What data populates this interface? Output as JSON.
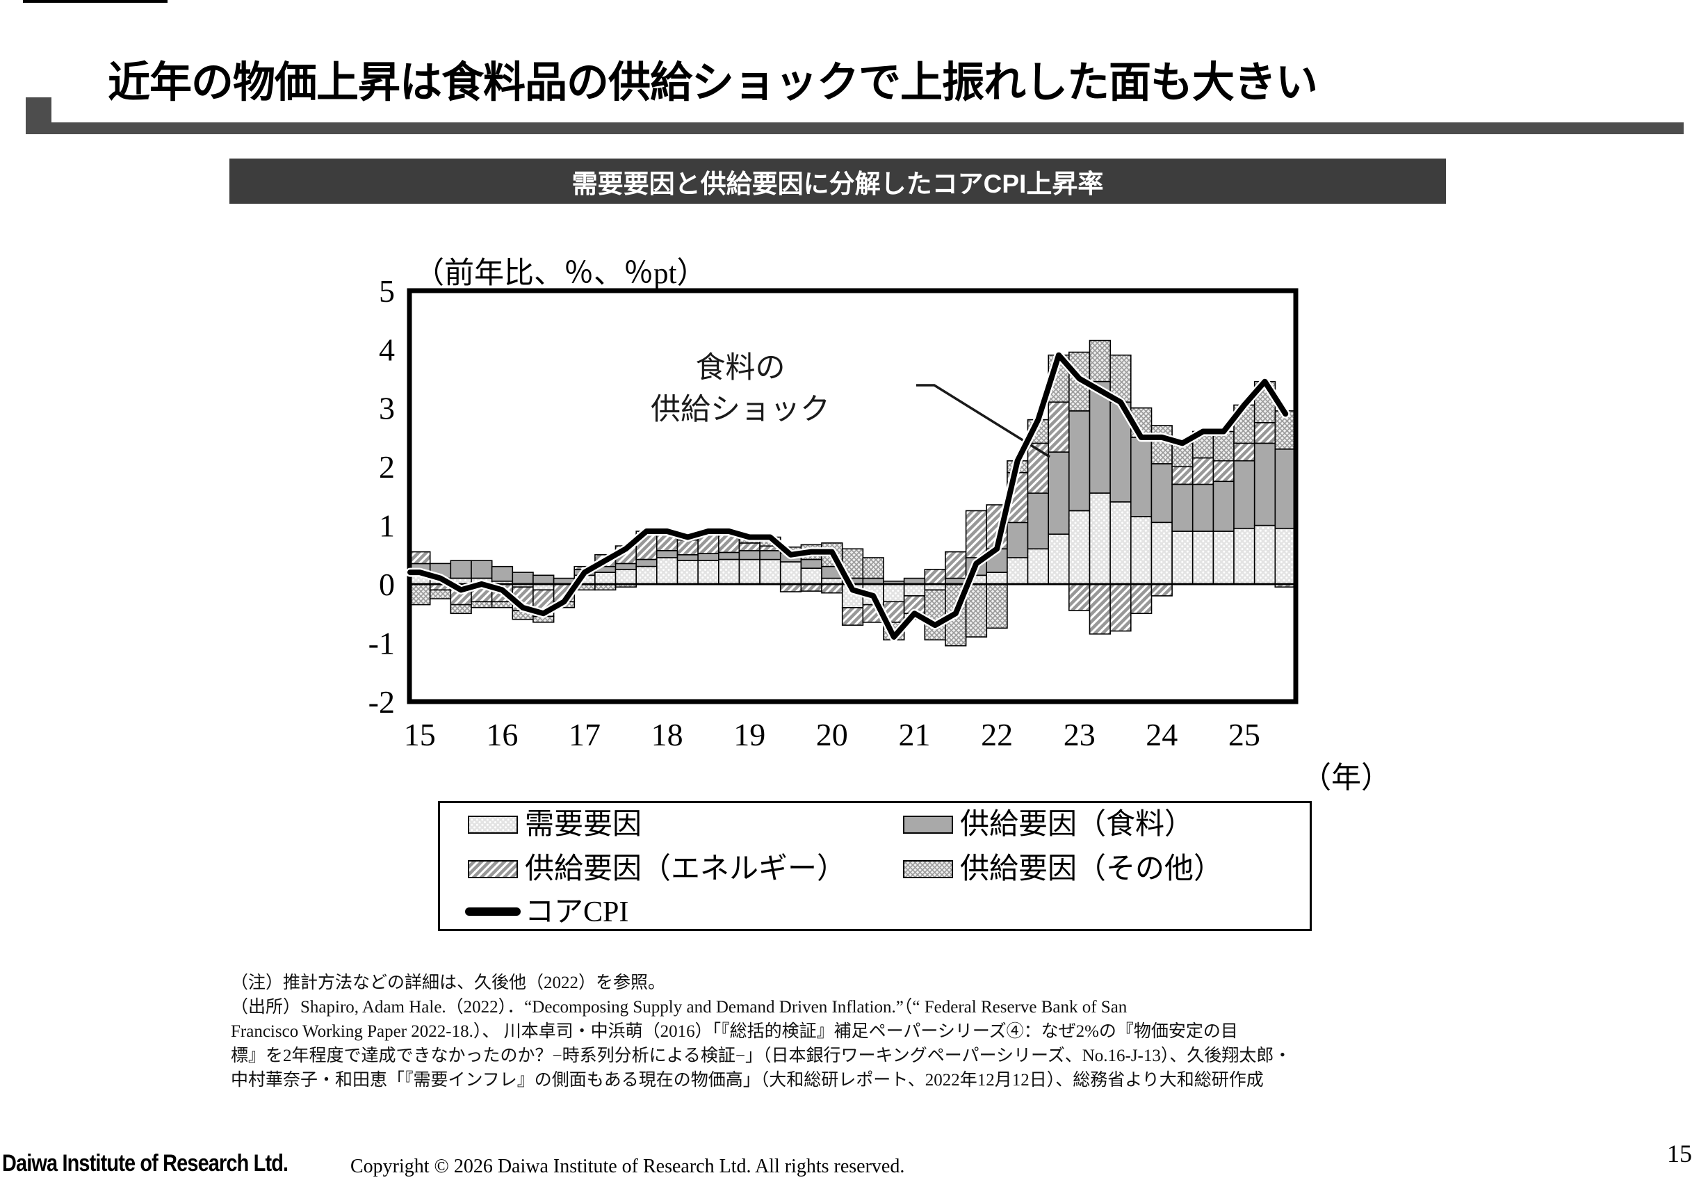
{
  "page": {
    "slide_title": "近年の物価上昇は食料品の供給ショックで上振れした面も大きい",
    "page_number": "15",
    "footer_logo": "Daiwa Institute of Research Ltd.",
    "footer_copyright": "Copyright © 2026 Daiwa Institute of Research Ltd. All rights reserved."
  },
  "chart_header": {
    "title": "需要要因と供給要因に分解したコアCPI上昇率"
  },
  "notes": {
    "lines": [
      "（注）推計方法などの詳細は、久後他（2022）を参照。",
      "（出所）Shapiro, Adam Hale.（2022）．“Decomposing Supply and Demand Driven Inflation.”（“ Federal Reserve Bank of San",
      "Francisco Working Paper 2022-18.）、 川本卓司・中浜萌（2016）「『総括的検証』補足ペーパーシリーズ④：なぜ2%の『物価安定の目",
      "標』を2年程度で達成できなかったのか？−時系列分析による検証−」（日本銀行ワーキングペーパーシリーズ、No.16-J-13）、久後翔太郎・",
      "中村華奈子・和田恵「『需要インフレ』の側面もある現在の物価高」（大和総研レポート、2022年12月12日）、総務省より大和総研作成"
    ]
  },
  "colors": {
    "header_bar": "#3d3d3d",
    "rule_gray": "#4d4d4d",
    "food_gray": "#a9a9a9",
    "pattern_gray": "#9a9a9a"
  },
  "chart_data": {
    "type": "bar",
    "subtype": "stacked-quarterly-bars-with-line",
    "title": "需要要因と供給要因に分解したコアCPI上昇率",
    "y_axis_label": "（前年比、％、％pt）",
    "x_axis_label": "（年）",
    "ylim": [
      -2,
      5
    ],
    "y_ticks": [
      5,
      4,
      3,
      2,
      1,
      0,
      -1,
      -2
    ],
    "grid": "off",
    "legend_position": "below-axis-boxed",
    "x_year_labels": [
      "15",
      "16",
      "17",
      "18",
      "19",
      "20",
      "21",
      "22",
      "23",
      "24",
      "25"
    ],
    "quarters": [
      "2015Q1",
      "2015Q2",
      "2015Q3",
      "2015Q4",
      "2016Q1",
      "2016Q2",
      "2016Q3",
      "2016Q4",
      "2017Q1",
      "2017Q2",
      "2017Q3",
      "2017Q4",
      "2018Q1",
      "2018Q2",
      "2018Q3",
      "2018Q4",
      "2019Q1",
      "2019Q2",
      "2019Q3",
      "2019Q4",
      "2020Q1",
      "2020Q2",
      "2020Q3",
      "2020Q4",
      "2021Q1",
      "2021Q2",
      "2021Q3",
      "2021Q4",
      "2022Q1",
      "2022Q2",
      "2022Q3",
      "2022Q4",
      "2023Q1",
      "2023Q2",
      "2023Q3",
      "2023Q4",
      "2024Q1",
      "2024Q2",
      "2024Q3",
      "2024Q4",
      "2025Q1",
      "2025Q2",
      "2025Q3"
    ],
    "series": [
      {
        "name": "需要要因",
        "pattern": "dots",
        "values": [
          0.15,
          0.1,
          0.1,
          0.1,
          0.05,
          -0.05,
          -0.1,
          0.0,
          0.15,
          0.2,
          0.25,
          0.3,
          0.45,
          0.4,
          0.4,
          0.42,
          0.42,
          0.42,
          0.38,
          0.27,
          0.1,
          -0.4,
          -0.35,
          -0.3,
          -0.2,
          -0.1,
          0.0,
          0.15,
          0.2,
          0.45,
          0.6,
          0.85,
          1.25,
          1.55,
          1.4,
          1.15,
          1.05,
          0.9,
          0.9,
          0.9,
          0.95,
          1.0,
          0.95
        ]
      },
      {
        "name": "供給要因（食料）",
        "pattern": "solid-gray",
        "values": [
          0.2,
          0.25,
          0.3,
          0.3,
          0.25,
          0.2,
          0.15,
          0.1,
          0.1,
          0.1,
          0.1,
          0.12,
          0.12,
          0.1,
          0.12,
          0.12,
          0.15,
          0.15,
          0.15,
          0.15,
          0.2,
          0.1,
          0.1,
          0.05,
          0.1,
          0.0,
          0.1,
          0.3,
          0.4,
          0.6,
          0.95,
          1.4,
          1.7,
          1.9,
          1.7,
          1.35,
          1.0,
          0.8,
          0.8,
          0.85,
          1.15,
          1.4,
          1.35
        ]
      },
      {
        "name": "供給要因（エネルギー）",
        "pattern": "diagonal-hatch",
        "values": [
          0.2,
          -0.1,
          -0.35,
          -0.3,
          -0.3,
          -0.4,
          -0.45,
          -0.3,
          0.05,
          0.2,
          0.3,
          0.43,
          0.28,
          0.25,
          0.33,
          0.31,
          0.13,
          0.08,
          -0.13,
          -0.12,
          -0.15,
          -0.3,
          -0.3,
          -0.35,
          -0.3,
          0.25,
          0.45,
          0.8,
          0.75,
          0.85,
          0.85,
          0.85,
          -0.45,
          -0.85,
          -0.8,
          -0.5,
          -0.2,
          0.3,
          0.45,
          0.35,
          0.3,
          0.35,
          -0.05
        ]
      },
      {
        "name": "供給要因（その他）",
        "pattern": "cross-hatch",
        "values": [
          -0.35,
          -0.15,
          -0.15,
          -0.1,
          -0.1,
          -0.15,
          -0.1,
          -0.1,
          -0.1,
          -0.1,
          -0.05,
          0.05,
          0.05,
          0.05,
          0.05,
          0.05,
          0.1,
          0.15,
          0.1,
          0.25,
          0.4,
          0.5,
          0.35,
          -0.3,
          -0.1,
          -0.85,
          -1.05,
          -0.9,
          -0.75,
          0.2,
          0.4,
          0.8,
          1.0,
          0.7,
          0.8,
          0.5,
          0.65,
          0.4,
          0.45,
          0.5,
          0.65,
          0.7,
          0.65
        ]
      }
    ],
    "line_series": {
      "name": "コアCPI",
      "values": [
        0.2,
        0.1,
        -0.1,
        0.0,
        -0.1,
        -0.4,
        -0.5,
        -0.3,
        0.2,
        0.4,
        0.6,
        0.9,
        0.9,
        0.8,
        0.9,
        0.9,
        0.8,
        0.8,
        0.5,
        0.55,
        0.55,
        -0.1,
        -0.2,
        -0.9,
        -0.5,
        -0.7,
        -0.5,
        0.35,
        0.6,
        2.1,
        2.8,
        3.9,
        3.5,
        3.3,
        3.1,
        2.5,
        2.5,
        2.4,
        2.6,
        2.6,
        3.05,
        3.45,
        2.9
      ]
    },
    "annotation": {
      "line1": "食料の",
      "line2": "供給ショック"
    }
  }
}
